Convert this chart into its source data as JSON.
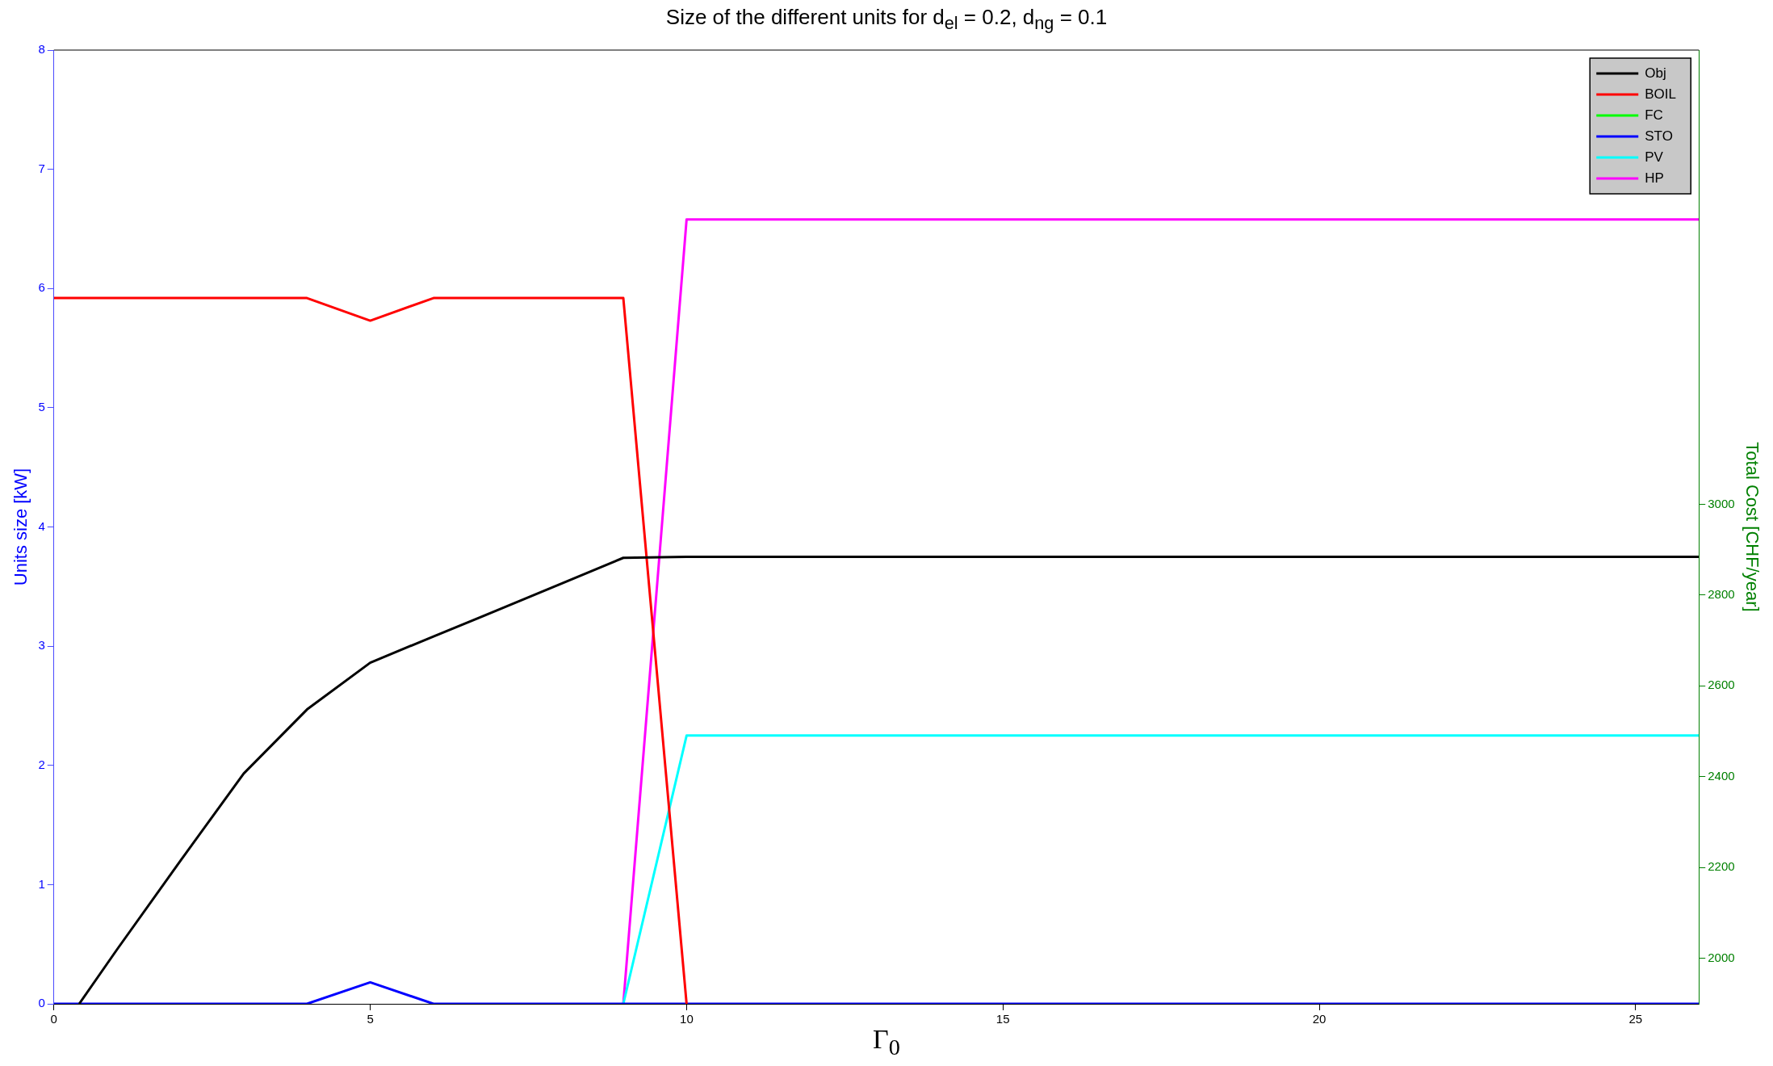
{
  "chart_data": {
    "type": "line",
    "title": "Size of the different units for d$_{el}$ = 0.2, d$_{ng}$ = 0.1",
    "xlabel": "Γ$_{0}$",
    "ylabel": "Units size [kW]",
    "y2label": "Total Cost [CHF/year]",
    "x": [
      0,
      1,
      2,
      3,
      4,
      5,
      6,
      7,
      8,
      9,
      10,
      11,
      12,
      13,
      14,
      15,
      16,
      17,
      18,
      19,
      20,
      21,
      22,
      23,
      24,
      25,
      26
    ],
    "series": [
      {
        "name": "Obj",
        "color": "#000000",
        "axis": "y2",
        "x": [
          0.4,
          1,
          2,
          3,
          4,
          5,
          6,
          7,
          8,
          9,
          10,
          11,
          12,
          13,
          14,
          15,
          16,
          17,
          18,
          19,
          20,
          21,
          22,
          23,
          24,
          25,
          26
        ],
        "values": [
          1900,
          2020,
          2215,
          2407,
          2548,
          2651,
          2709,
          2766,
          2824,
          2882,
          2884,
          2884,
          2884,
          2884,
          2884,
          2884,
          2884,
          2884,
          2884,
          2884,
          2884,
          2884,
          2884,
          2884,
          2884,
          2884,
          2884
        ]
      },
      {
        "name": "BOIL",
        "color": "#ff0000",
        "values": [
          5.92,
          5.92,
          5.92,
          5.92,
          5.92,
          5.73,
          5.92,
          5.92,
          5.92,
          5.92,
          0,
          null,
          null,
          null,
          null,
          null,
          null,
          null,
          null,
          null,
          null,
          null,
          null,
          null,
          null,
          null,
          null
        ]
      },
      {
        "name": "FC",
        "color": "#00ff00",
        "values": [
          null,
          null,
          null,
          null,
          null,
          null,
          null,
          null,
          null,
          null,
          null,
          null,
          null,
          null,
          null,
          null,
          null,
          null,
          null,
          null,
          null,
          null,
          null,
          null,
          null,
          null,
          null
        ]
      },
      {
        "name": "STO",
        "color": "#0000ff",
        "values": [
          0,
          0,
          0,
          0,
          0,
          0.18,
          0,
          0,
          0,
          0,
          0,
          0,
          0,
          0,
          0,
          0,
          0,
          0,
          0,
          0,
          0,
          0,
          0,
          0,
          0,
          0,
          0
        ]
      },
      {
        "name": "PV",
        "color": "#00ffff",
        "values": [
          null,
          null,
          null,
          null,
          null,
          null,
          null,
          null,
          null,
          0,
          2.25,
          2.25,
          2.25,
          2.25,
          2.25,
          2.25,
          2.25,
          2.25,
          2.25,
          2.25,
          2.25,
          2.25,
          2.25,
          2.25,
          2.25,
          2.25,
          2.25
        ]
      },
      {
        "name": "HP",
        "color": "#ff00ff",
        "values": [
          null,
          null,
          null,
          null,
          null,
          null,
          null,
          null,
          null,
          0,
          6.58,
          6.58,
          6.58,
          6.58,
          6.58,
          6.58,
          6.58,
          6.58,
          6.58,
          6.58,
          6.58,
          6.58,
          6.58,
          6.58,
          6.58,
          6.58,
          6.58
        ]
      }
    ],
    "xlim": [
      0,
      26
    ],
    "xticks": [
      0,
      5,
      10,
      15,
      20,
      25
    ],
    "ylim": [
      0,
      8
    ],
    "yticks": [
      0,
      1,
      2,
      3,
      4,
      5,
      6,
      7,
      8
    ],
    "y2lim": [
      1900,
      4000
    ],
    "y2ticks": [
      2000,
      2200,
      2400,
      2600,
      2800,
      3000
    ],
    "grid": false,
    "legend": "top right",
    "marker": "none",
    "line_style": "solid"
  }
}
